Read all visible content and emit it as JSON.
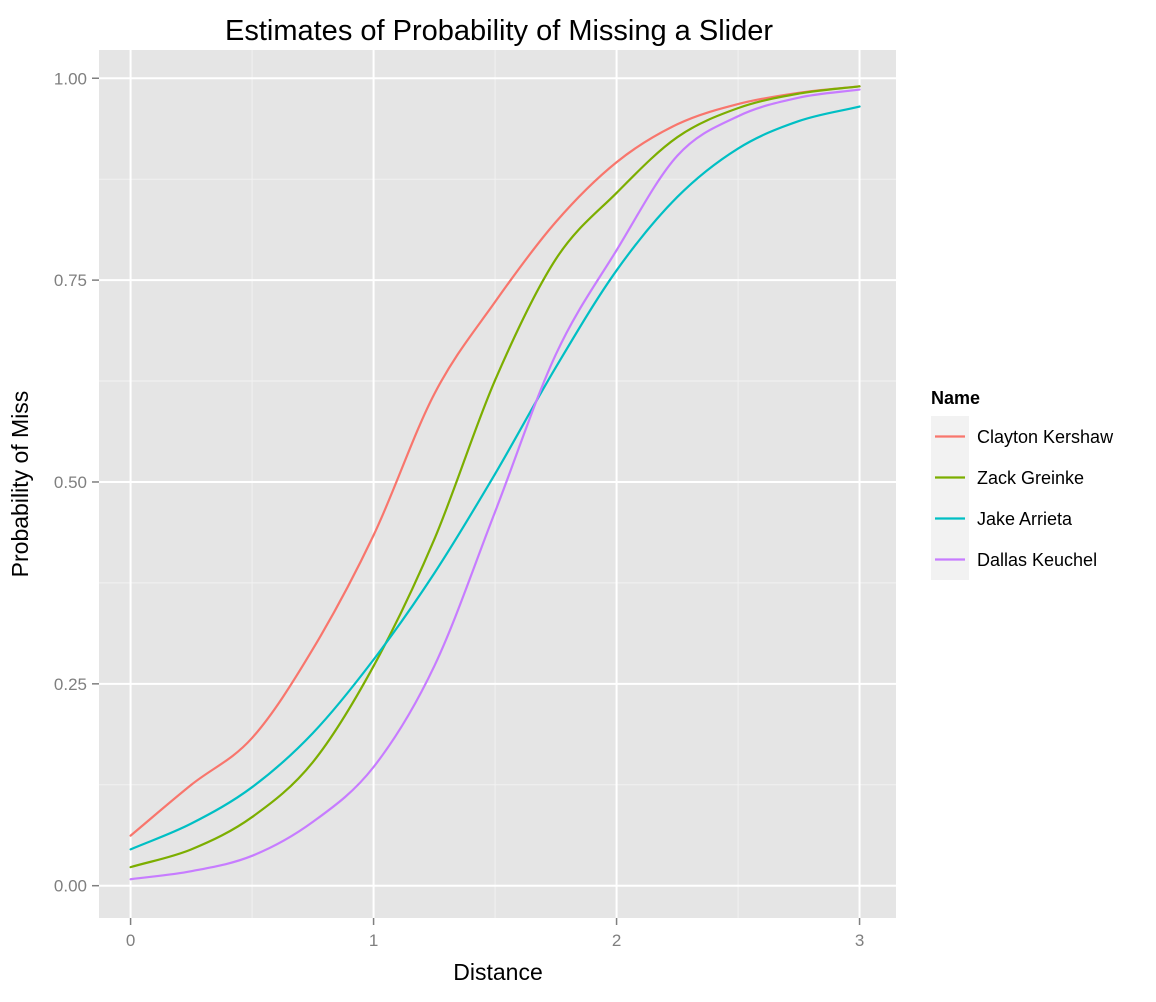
{
  "chart_data": {
    "type": "line",
    "title": "Estimates of Probability of Missing a Slider",
    "xlabel": "Distance",
    "ylabel": "Probability of Miss",
    "xlim": [
      -0.13,
      3.15
    ],
    "ylim": [
      -0.04,
      1.035
    ],
    "x_ticks": [
      0,
      1,
      2,
      3
    ],
    "x_tick_labels": [
      "0",
      "1",
      "2",
      "3"
    ],
    "y_ticks": [
      0,
      0.25,
      0.5,
      0.75,
      1
    ],
    "y_tick_labels": [
      "0.00",
      "0.25",
      "0.50",
      "0.75",
      "1.00"
    ],
    "grid": true,
    "legend_title": "Name",
    "legend_position": "right",
    "x": [
      0,
      0.25,
      0.5,
      0.75,
      1.0,
      1.25,
      1.5,
      1.75,
      2.0,
      2.25,
      2.5,
      2.75,
      3.0
    ],
    "series": [
      {
        "name": "Clayton Kershaw",
        "color": "#F8766D",
        "values": [
          0.062,
          0.125,
          0.183,
          0.293,
          0.434,
          0.609,
          0.723,
          0.822,
          0.896,
          0.943,
          0.968,
          0.982,
          0.99
        ]
      },
      {
        "name": "Zack Greinke",
        "color": "#7CAE00",
        "values": [
          0.023,
          0.045,
          0.085,
          0.153,
          0.272,
          0.429,
          0.626,
          0.776,
          0.858,
          0.927,
          0.963,
          0.981,
          0.99
        ]
      },
      {
        "name": "Jake Arrieta",
        "color": "#00BFC4",
        "values": [
          0.045,
          0.077,
          0.122,
          0.189,
          0.28,
          0.387,
          0.51,
          0.642,
          0.762,
          0.853,
          0.913,
          0.947,
          0.965
        ]
      },
      {
        "name": "Dallas Keuchel",
        "color": "#C77CFF",
        "values": [
          0.008,
          0.018,
          0.037,
          0.079,
          0.147,
          0.272,
          0.463,
          0.658,
          0.787,
          0.904,
          0.953,
          0.976,
          0.986
        ]
      }
    ]
  }
}
